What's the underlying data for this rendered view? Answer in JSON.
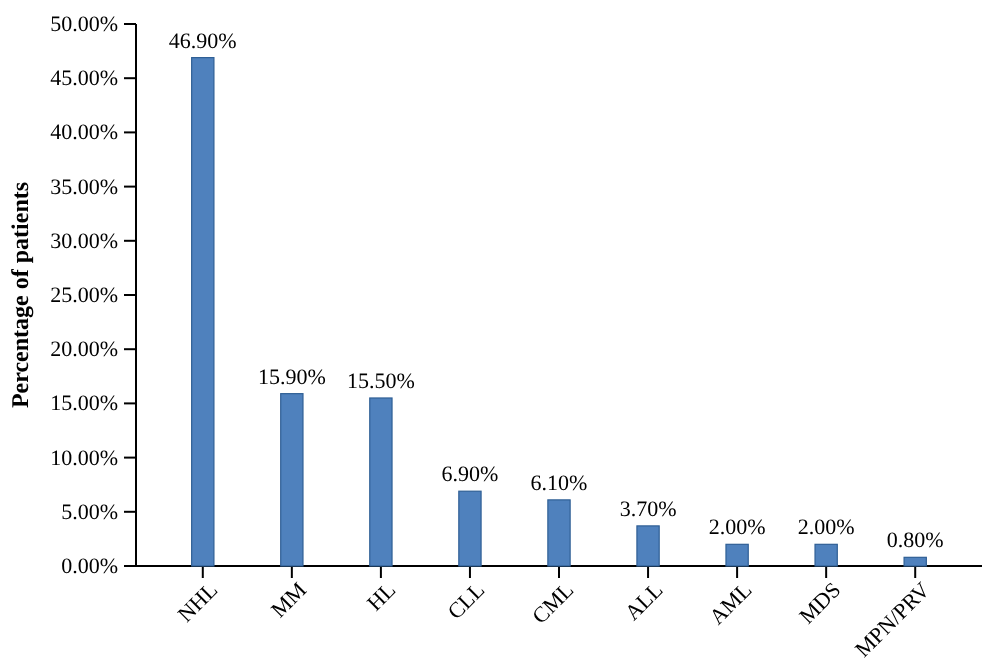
{
  "chart_data": {
    "type": "bar",
    "ylabel": "Percentage of patients",
    "categories": [
      "NHL",
      "MM",
      "HL",
      "CLL",
      "CML",
      "ALL",
      "AML",
      "MDS",
      "MPN/PRV"
    ],
    "values": [
      46.9,
      15.9,
      15.5,
      6.9,
      6.1,
      3.7,
      2.0,
      2.0,
      0.8
    ],
    "value_labels": [
      "46.90%",
      "15.90%",
      "15.50%",
      "6.90%",
      "6.10%",
      "3.70%",
      "2.00%",
      "2.00%",
      "0.80%"
    ],
    "color": "#4f81bd",
    "ylim": [
      0,
      50
    ],
    "yticks": [
      {
        "value": 0,
        "label": "0.00%"
      },
      {
        "value": 5,
        "label": "5.00%"
      },
      {
        "value": 10,
        "label": "10.00%"
      },
      {
        "value": 15,
        "label": "15.00%"
      },
      {
        "value": 20,
        "label": "20.00%"
      },
      {
        "value": 25,
        "label": "25.00%"
      },
      {
        "value": 30,
        "label": "30.00%"
      },
      {
        "value": 35,
        "label": "35.00%"
      },
      {
        "value": 40,
        "label": "40.00%"
      },
      {
        "value": 45,
        "label": "45.00%"
      },
      {
        "value": 50,
        "label": "50.00%"
      }
    ]
  }
}
